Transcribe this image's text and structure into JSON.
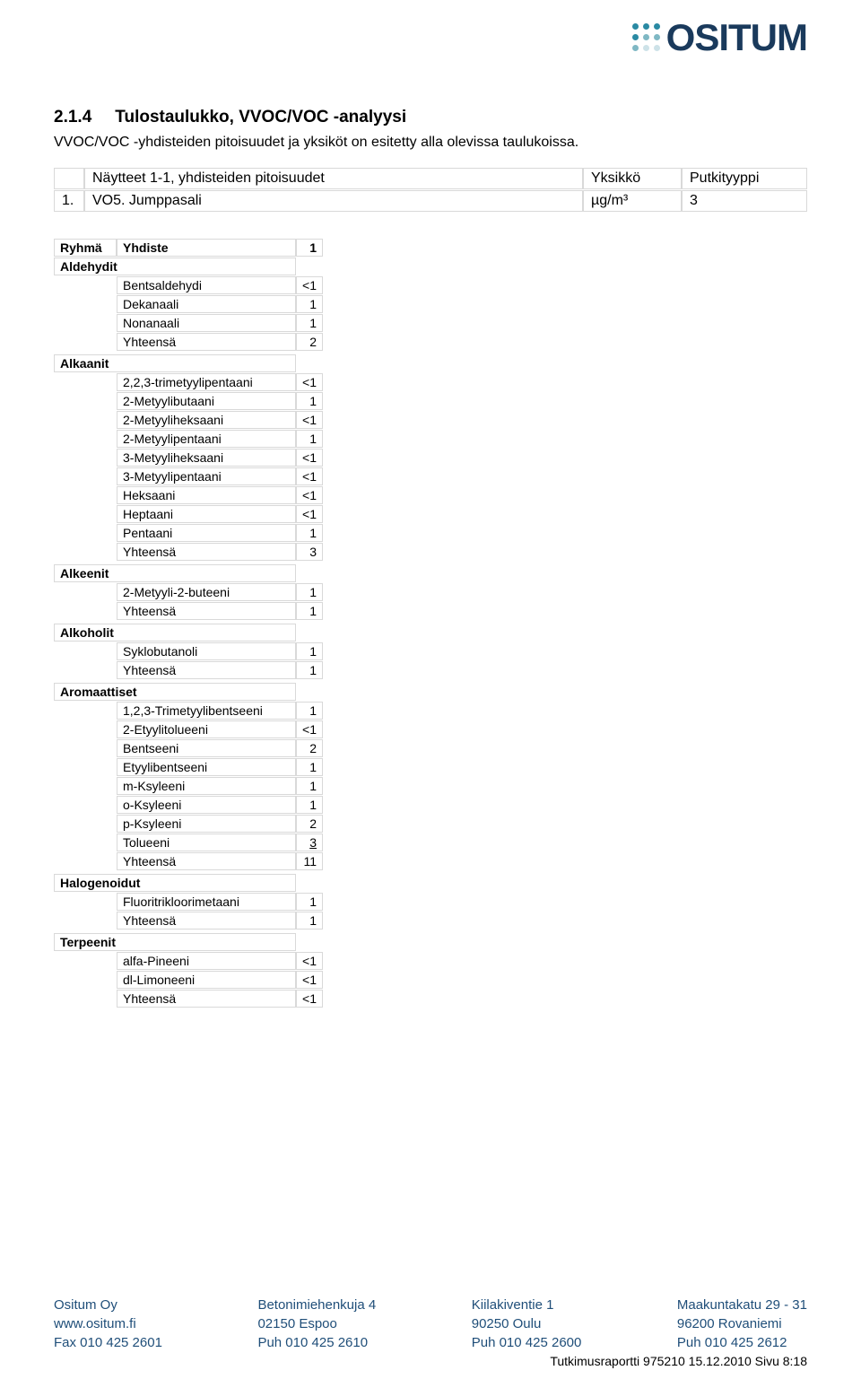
{
  "logo": {
    "text": "OSITUM",
    "text_color": "#1a3a5c",
    "dot_colors": [
      "#2a8aa3",
      "#2a8aa3",
      "#2a8aa3",
      "#2a8aa3",
      "#7fb8c4",
      "#7fb8c4",
      "#7fb8c4",
      "#cde2e8",
      "#cde2e8"
    ]
  },
  "section": {
    "number": "2.1.4",
    "title": "Tulostaulukko, VVOC/VOC -analyysi",
    "paragraph": "VVOC/VOC -yhdisteiden pitoisuudet ja yksiköt on esitetty alla olevissa taulukoissa."
  },
  "samples_table": {
    "headers": [
      "",
      "Näytteet 1-1, yhdisteiden pitoisuudet",
      "Yksikkö",
      "Putkityyppi"
    ],
    "row": [
      "1.",
      "VO5. Jumppasali",
      "µg/m³",
      "3"
    ]
  },
  "compound_header": {
    "ryhma": "Ryhmä",
    "yhdiste": "Yhdiste",
    "col": "1"
  },
  "groups": [
    {
      "name": "Aldehydit",
      "rows": [
        {
          "c": "Bentsaldehydi",
          "v": "<1"
        },
        {
          "c": "Dekanaali",
          "v": "1"
        },
        {
          "c": "Nonanaali",
          "v": "1"
        },
        {
          "c": "Yhteensä",
          "v": "2"
        }
      ]
    },
    {
      "name": "Alkaanit",
      "rows": [
        {
          "c": "2,2,3-trimetyylipentaani",
          "v": "<1"
        },
        {
          "c": "2-Metyylibutaani",
          "v": "1"
        },
        {
          "c": "2-Metyyliheksaani",
          "v": "<1"
        },
        {
          "c": "2-Metyylipentaani",
          "v": "1"
        },
        {
          "c": "3-Metyyliheksaani",
          "v": "<1"
        },
        {
          "c": "3-Metyylipentaani",
          "v": "<1"
        },
        {
          "c": "Heksaani",
          "v": "<1"
        },
        {
          "c": "Heptaani",
          "v": "<1"
        },
        {
          "c": "Pentaani",
          "v": "1"
        },
        {
          "c": "Yhteensä",
          "v": "3"
        }
      ]
    },
    {
      "name": "Alkeenit",
      "rows": [
        {
          "c": "2-Metyyli-2-buteeni",
          "v": "1"
        },
        {
          "c": "Yhteensä",
          "v": "1"
        }
      ]
    },
    {
      "name": "Alkoholit",
      "rows": [
        {
          "c": "Syklobutanoli",
          "v": "1"
        },
        {
          "c": "Yhteensä",
          "v": "1"
        }
      ]
    },
    {
      "name": "Aromaattiset",
      "rows": [
        {
          "c": "1,2,3-Trimetyylibentseeni",
          "v": "1"
        },
        {
          "c": "2-Etyylitolueeni",
          "v": "<1"
        },
        {
          "c": "Bentseeni",
          "v": "2"
        },
        {
          "c": "Etyylibentseeni",
          "v": "1"
        },
        {
          "c": "m-Ksyleeni",
          "v": "1"
        },
        {
          "c": "o-Ksyleeni",
          "v": "1"
        },
        {
          "c": "p-Ksyleeni",
          "v": "2"
        },
        {
          "c": "Tolueeni",
          "v": "3",
          "box": true
        },
        {
          "c": "Yhteensä",
          "v": "11"
        }
      ]
    },
    {
      "name": "Halogenoidut",
      "rows": [
        {
          "c": "Fluoritrikloorimetaani",
          "v": "1"
        },
        {
          "c": "Yhteensä",
          "v": "1"
        }
      ]
    },
    {
      "name": "Terpeenit",
      "rows": [
        {
          "c": "alfa-Pineeni",
          "v": "<1"
        },
        {
          "c": "dl-Limoneeni",
          "v": "<1"
        },
        {
          "c": "Yhteensä",
          "v": "<1"
        }
      ]
    }
  ],
  "footer": {
    "cols": [
      [
        "Ositum Oy",
        "www.ositum.fi",
        "Fax 010 425 2601"
      ],
      [
        "Betonimiehenkuja 4",
        "02150 Espoo",
        "Puh 010 425 2610"
      ],
      [
        "Kiilakiventie 1",
        "90250 Oulu",
        "Puh 010 425 2600"
      ],
      [
        "Maakuntakatu 29 - 31",
        "96200 Rovaniemi",
        "Puh 010 425 2612"
      ]
    ]
  },
  "page_footer": "Tutkimusraportti 975210 15.12.2010 Sivu 8:18"
}
